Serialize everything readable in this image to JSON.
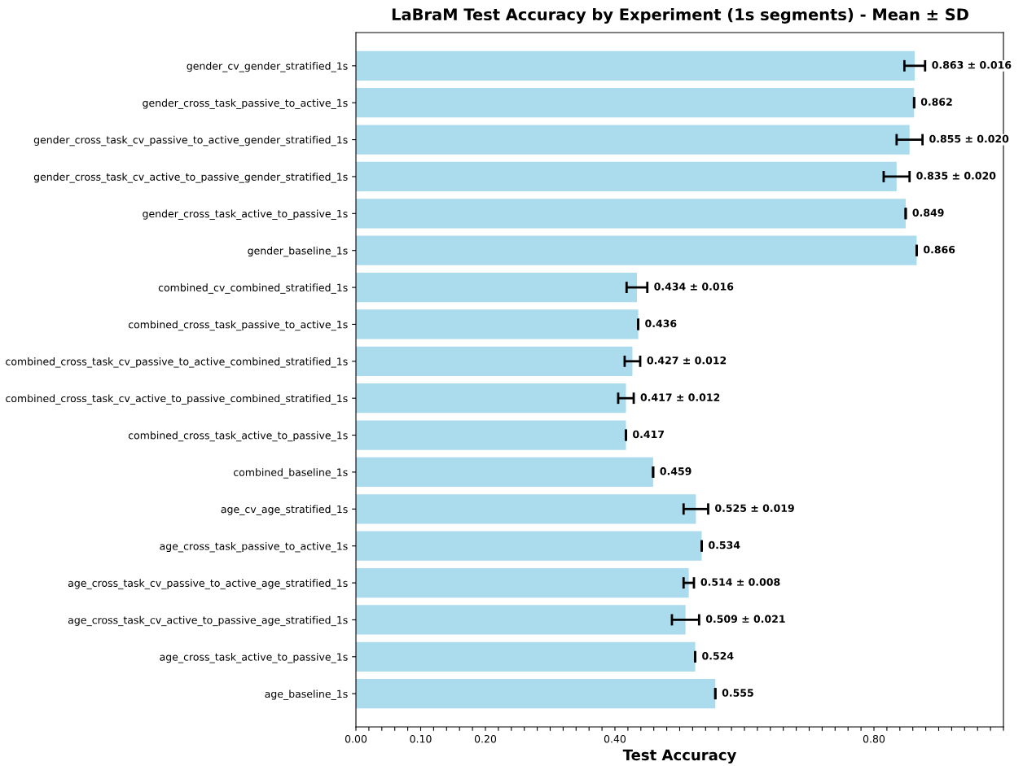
{
  "chart_data": {
    "type": "bar",
    "orientation": "horizontal",
    "title": "LaBraM Test Accuracy by Experiment (1s segments) - Mean ± SD",
    "xlabel": "Test Accuracy",
    "categories": [
      "gender_cv_gender_stratified_1s",
      "gender_cross_task_passive_to_active_1s",
      "gender_cross_task_cv_passive_to_active_gender_stratified_1s",
      "gender_cross_task_cv_active_to_passive_gender_stratified_1s",
      "gender_cross_task_active_to_passive_1s",
      "gender_baseline_1s",
      "combined_cv_combined_stratified_1s",
      "combined_cross_task_passive_to_active_1s",
      "combined_cross_task_cv_passive_to_active_combined_stratified_1s",
      "combined_cross_task_cv_active_to_passive_combined_stratified_1s",
      "combined_cross_task_active_to_passive_1s",
      "combined_baseline_1s",
      "age_cv_age_stratified_1s",
      "age_cross_task_passive_to_active_1s",
      "age_cross_task_cv_passive_to_active_age_stratified_1s",
      "age_cross_task_cv_active_to_passive_age_stratified_1s",
      "age_cross_task_active_to_passive_1s",
      "age_baseline_1s"
    ],
    "values": [
      0.863,
      0.862,
      0.855,
      0.835,
      0.849,
      0.866,
      0.434,
      0.436,
      0.427,
      0.417,
      0.417,
      0.459,
      0.525,
      0.534,
      0.514,
      0.509,
      0.524,
      0.555
    ],
    "errors": [
      0.016,
      0,
      0.02,
      0.02,
      0,
      0,
      0.016,
      0,
      0.012,
      0.012,
      0,
      0,
      0.019,
      0,
      0.008,
      0.021,
      0,
      0
    ],
    "value_labels": [
      "0.863 ± 0.016",
      "0.862",
      "0.855 ± 0.020",
      "0.835 ± 0.020",
      "0.849",
      "0.866",
      "0.434 ± 0.016",
      "0.436",
      "0.427 ± 0.012",
      "0.417 ± 0.012",
      "0.417",
      "0.459",
      "0.525 ± 0.019",
      "0.534",
      "0.514 ± 0.008",
      "0.509 ± 0.021",
      "0.524",
      "0.555"
    ],
    "color": "#aadcee",
    "xlim": [
      0,
      1.0
    ],
    "xticks": [
      {
        "value": 0.0,
        "label": "0.00"
      },
      {
        "value": 0.02,
        "label": null
      },
      {
        "value": 0.04,
        "label": null
      },
      {
        "value": 0.06,
        "label": null
      },
      {
        "value": 0.08,
        "label": null
      },
      {
        "value": 0.1,
        "label": "0.10"
      },
      {
        "value": 0.12,
        "label": null
      },
      {
        "value": 0.14,
        "label": null
      },
      {
        "value": 0.16,
        "label": null
      },
      {
        "value": 0.18,
        "label": null
      },
      {
        "value": 0.2,
        "label": "0.20"
      },
      {
        "value": 0.22,
        "label": null
      },
      {
        "value": 0.24,
        "label": null
      },
      {
        "value": 0.26,
        "label": null
      },
      {
        "value": 0.28,
        "label": null
      },
      {
        "value": 0.3,
        "label": null
      },
      {
        "value": 0.32,
        "label": null
      },
      {
        "value": 0.34,
        "label": null
      },
      {
        "value": 0.36,
        "label": null
      },
      {
        "value": 0.38,
        "label": null
      },
      {
        "value": 0.4,
        "label": "0.40"
      },
      {
        "value": 0.42,
        "label": null
      },
      {
        "value": 0.44,
        "label": null
      },
      {
        "value": 0.46,
        "label": null
      },
      {
        "value": 0.48,
        "label": null
      },
      {
        "value": 0.5,
        "label": null
      },
      {
        "value": 0.52,
        "label": null
      },
      {
        "value": 0.54,
        "label": null
      },
      {
        "value": 0.56,
        "label": null
      },
      {
        "value": 0.58,
        "label": null
      },
      {
        "value": 0.6,
        "label": null
      },
      {
        "value": 0.62,
        "label": null
      },
      {
        "value": 0.64,
        "label": null
      },
      {
        "value": 0.66,
        "label": null
      },
      {
        "value": 0.68,
        "label": null
      },
      {
        "value": 0.7,
        "label": null
      },
      {
        "value": 0.72,
        "label": null
      },
      {
        "value": 0.74,
        "label": null
      },
      {
        "value": 0.76,
        "label": null
      },
      {
        "value": 0.78,
        "label": null
      },
      {
        "value": 0.8,
        "label": "0.80"
      },
      {
        "value": 0.82,
        "label": null
      },
      {
        "value": 0.84,
        "label": null
      },
      {
        "value": 0.86,
        "label": null
      },
      {
        "value": 0.88,
        "label": null
      },
      {
        "value": 0.9,
        "label": null
      },
      {
        "value": 0.92,
        "label": null
      },
      {
        "value": 0.94,
        "label": null
      },
      {
        "value": 0.96,
        "label": null
      },
      {
        "value": 0.98,
        "label": null
      },
      {
        "value": 1.0,
        "label": null
      }
    ]
  }
}
